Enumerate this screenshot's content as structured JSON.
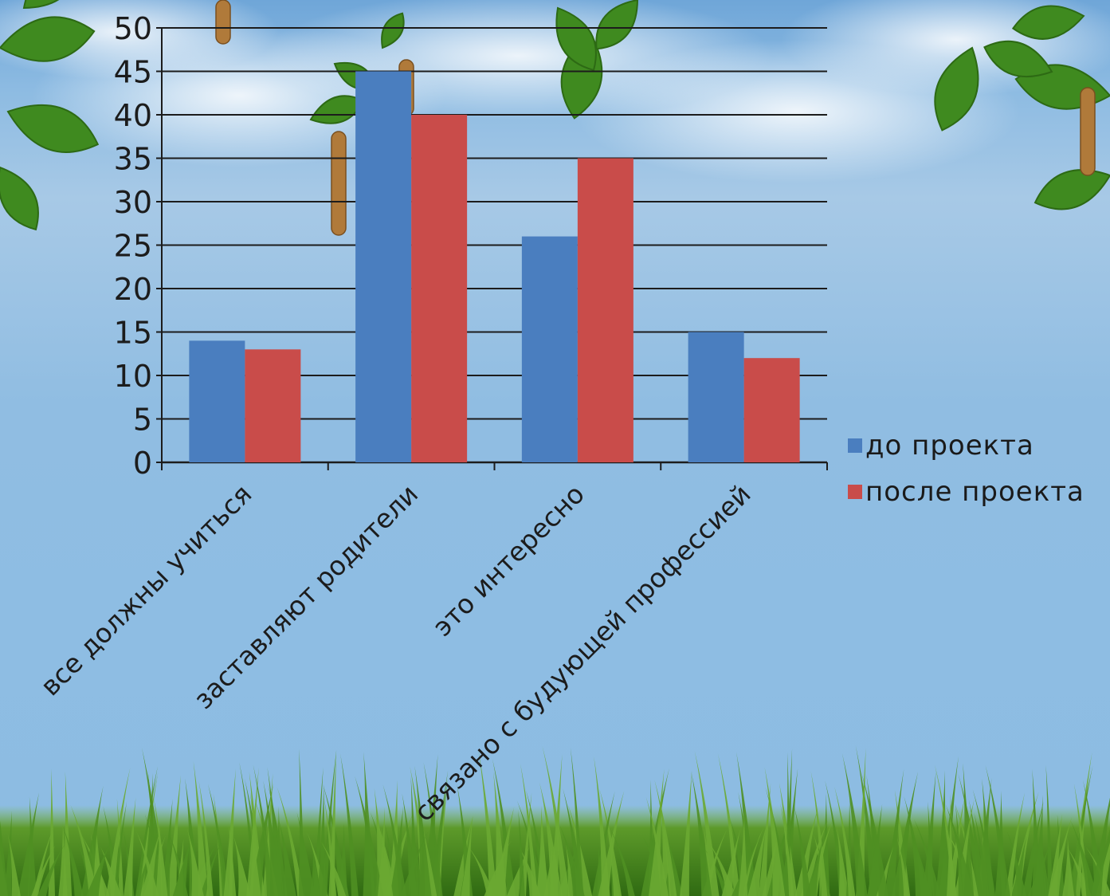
{
  "chart_data": {
    "type": "bar",
    "categories": [
      "все должны учиться",
      "заставляют родители",
      "это интересно",
      "связано с будующей профессией"
    ],
    "series": [
      {
        "name": "до проекта",
        "values": [
          14,
          45,
          26,
          15
        ],
        "color": "#4a7ebf"
      },
      {
        "name": "после проекта",
        "values": [
          13,
          40,
          35,
          12
        ],
        "color": "#c94c4a"
      }
    ],
    "ylim": [
      0,
      50
    ],
    "yticks": [
      0,
      5,
      10,
      15,
      20,
      25,
      30,
      35,
      40,
      45,
      50
    ],
    "grid": true,
    "legend_position": "right",
    "title": "",
    "xlabel": "",
    "ylabel": ""
  },
  "background": {
    "theme": "sky with birch leaves and grass",
    "sky_color": "#8ebde3",
    "leaf_color": "#3f8a1f",
    "grass_color": "#4f8f22",
    "catkin_color": "#b07a3a"
  }
}
